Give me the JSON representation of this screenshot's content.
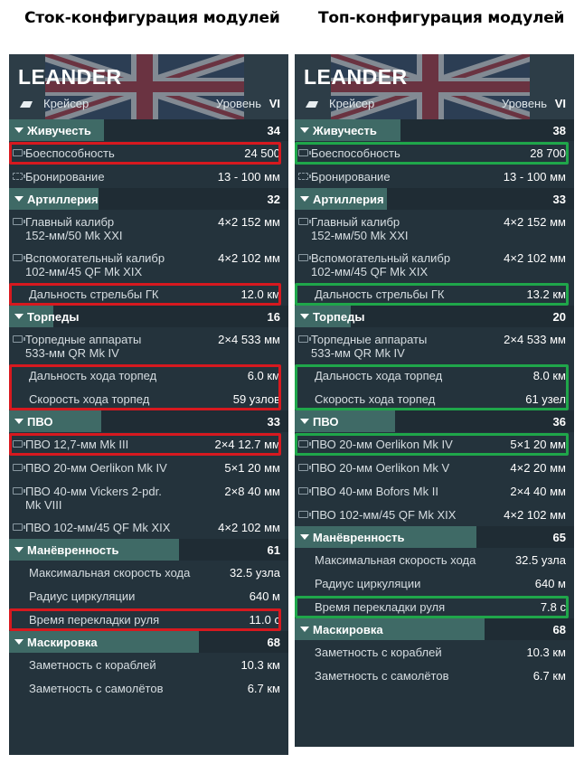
{
  "headings": {
    "left": "Сток-конфигурация модулей",
    "right": "Топ-конфигурация модулей"
  },
  "colors": {
    "highlight_left": "#d7191f",
    "highlight_right": "#1fa64a",
    "section_bar": "#3f6a66"
  },
  "panels": [
    {
      "ship": "LEANDER",
      "class_label": "Крейсер",
      "class_icon": "cruiser-icon",
      "level_label": "Уровень",
      "level_value": "VI",
      "sections": [
        {
          "name": "Живучесть",
          "value": "34",
          "fill": 0.34,
          "rows": [
            {
              "label": "Боеспособность",
              "value": "24 500",
              "icon": "hp-icon"
            },
            {
              "label": "Бронирование",
              "value": "13 - 100 мм",
              "icon": "armor-icon"
            }
          ]
        },
        {
          "name": "Артиллерия",
          "value": "32",
          "fill": 0.32,
          "rows": [
            {
              "label": "Главный калибр\n152-мм/50 Mk XXI",
              "value": "4×2  152 мм",
              "icon": "gun-icon",
              "tall": true
            },
            {
              "label": "Вспомогательный калибр\n102-мм/45 QF Mk XIX",
              "value": "4×2  102 мм",
              "icon": "gun-icon",
              "tall": true
            },
            {
              "label": "Дальность стрельбы ГК",
              "value": "12.0 км"
            }
          ]
        },
        {
          "name": "Торпеды",
          "value": "16",
          "fill": 0.16,
          "rows": [
            {
              "label": "Торпедные аппараты\n533-мм QR Mk IV",
              "value": "2×4  533 мм",
              "icon": "torpedo-icon",
              "tall": true
            },
            {
              "label": "Дальность хода торпед",
              "value": "6.0 км"
            },
            {
              "label": "Скорость хода торпед",
              "value": "59 узлов"
            }
          ]
        },
        {
          "name": "ПВО",
          "value": "33",
          "fill": 0.33,
          "rows": [
            {
              "label": "ПВО 12,7-мм Mk III",
              "value": "2×4  12.7 мм",
              "icon": "aa-icon"
            },
            {
              "label": "ПВО 20-мм Oerlikon Mk IV",
              "value": "5×1  20 мм",
              "icon": "aa-icon"
            },
            {
              "label": "ПВО 40-мм Vickers 2-pdr.\nMk VIII",
              "value": "2×8  40 мм",
              "icon": "aa-icon",
              "tall": true
            },
            {
              "label": "ПВО 102-мм/45 QF Mk XIX",
              "value": "4×2  102 мм",
              "icon": "aa-icon"
            }
          ]
        },
        {
          "name": "Манёвренность",
          "value": "61",
          "fill": 0.61,
          "rows": [
            {
              "label": "Максимальная скорость хода",
              "value": "32.5 узла"
            },
            {
              "label": "Радиус циркуляции",
              "value": "640 м"
            },
            {
              "label": "Время перекладки руля",
              "value": "11.0 с"
            }
          ]
        },
        {
          "name": "Маскировка",
          "value": "68",
          "fill": 0.68,
          "rows": [
            {
              "label": "Заметность с кораблей",
              "value": "10.3 км"
            },
            {
              "label": "Заметность с самолётов",
              "value": "6.7 км"
            }
          ]
        }
      ]
    },
    {
      "ship": "LEANDER",
      "class_label": "Крейсер",
      "class_icon": "cruiser-elite-icon",
      "level_label": "Уровень",
      "level_value": "VI",
      "sections": [
        {
          "name": "Живучесть",
          "value": "38",
          "fill": 0.38,
          "rows": [
            {
              "label": "Боеспособность",
              "value": "28 700",
              "icon": "hp-icon"
            },
            {
              "label": "Бронирование",
              "value": "13 - 100 мм",
              "icon": "armor-icon"
            }
          ]
        },
        {
          "name": "Артиллерия",
          "value": "33",
          "fill": 0.33,
          "rows": [
            {
              "label": "Главный калибр\n152-мм/50 Mk XXI",
              "value": "4×2  152 мм",
              "icon": "gun-icon",
              "tall": true
            },
            {
              "label": "Вспомогательный калибр\n102-мм/45 QF Mk XIX",
              "value": "4×2  102 мм",
              "icon": "gun-icon",
              "tall": true
            },
            {
              "label": "Дальность стрельбы ГК",
              "value": "13.2 км"
            }
          ]
        },
        {
          "name": "Торпеды",
          "value": "20",
          "fill": 0.2,
          "rows": [
            {
              "label": "Торпедные аппараты\n533-мм QR Mk IV",
              "value": "2×4  533 мм",
              "icon": "torpedo-icon",
              "tall": true
            },
            {
              "label": "Дальность хода торпед",
              "value": "8.0 км"
            },
            {
              "label": "Скорость хода торпед",
              "value": "61 узел"
            }
          ]
        },
        {
          "name": "ПВО",
          "value": "36",
          "fill": 0.36,
          "rows": [
            {
              "label": "ПВО 20-мм Oerlikon Mk IV",
              "value": "5×1  20 мм",
              "icon": "aa-icon"
            },
            {
              "label": "ПВО 20-мм Oerlikon Mk V",
              "value": "4×2  20 мм",
              "icon": "aa-icon"
            },
            {
              "label": "ПВО 40-мм Bofors Mk II",
              "value": "2×4  40 мм",
              "icon": "aa-icon"
            },
            {
              "label": "ПВО 102-мм/45 QF Mk XIX",
              "value": "4×2  102 мм",
              "icon": "aa-icon"
            }
          ]
        },
        {
          "name": "Манёвренность",
          "value": "65",
          "fill": 0.65,
          "rows": [
            {
              "label": "Максимальная скорость хода",
              "value": "32.5 узла"
            },
            {
              "label": "Радиус циркуляции",
              "value": "640 м"
            },
            {
              "label": "Время перекладки руля",
              "value": "7.8 с"
            }
          ]
        },
        {
          "name": "Маскировка",
          "value": "68",
          "fill": 0.68,
          "rows": [
            {
              "label": "Заметность с кораблей",
              "value": "10.3 км"
            },
            {
              "label": "Заметность с самолётов",
              "value": "6.7 км"
            }
          ]
        }
      ]
    }
  ]
}
